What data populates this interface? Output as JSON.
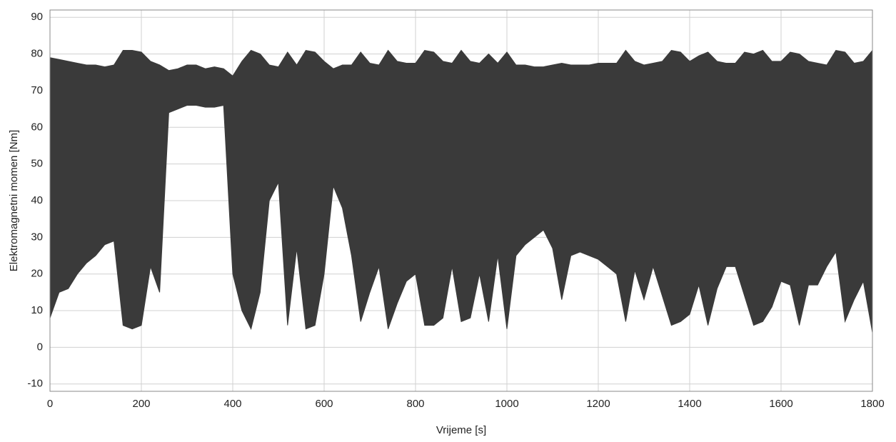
{
  "chart_data": {
    "type": "band",
    "xlabel": "Vrijeme [s]",
    "ylabel": "Elektromagnetni momen [Nm]",
    "color": "#3a3a3a",
    "grid": true,
    "xlim": [
      0,
      1800
    ],
    "xticks": [
      0,
      200,
      400,
      600,
      800,
      1000,
      1200,
      1400,
      1600,
      1800
    ],
    "ylim": [
      -12,
      92
    ],
    "yticks": [
      -10,
      0,
      10,
      20,
      30,
      40,
      50,
      60,
      70,
      80,
      90
    ],
    "x": [
      0,
      20,
      40,
      60,
      80,
      100,
      120,
      140,
      160,
      180,
      200,
      220,
      240,
      260,
      280,
      300,
      320,
      340,
      360,
      380,
      400,
      420,
      440,
      460,
      480,
      500,
      520,
      540,
      560,
      580,
      600,
      620,
      640,
      660,
      680,
      700,
      720,
      740,
      760,
      780,
      800,
      820,
      840,
      860,
      880,
      900,
      920,
      940,
      960,
      980,
      1000,
      1020,
      1040,
      1060,
      1080,
      1100,
      1120,
      1140,
      1160,
      1180,
      1200,
      1220,
      1240,
      1260,
      1280,
      1300,
      1320,
      1340,
      1360,
      1380,
      1400,
      1420,
      1440,
      1460,
      1480,
      1500,
      1520,
      1540,
      1560,
      1580,
      1600,
      1620,
      1640,
      1660,
      1680,
      1700,
      1720,
      1740,
      1760,
      1780,
      1800
    ],
    "high": [
      79,
      78.5,
      78,
      77.5,
      77,
      77,
      76.5,
      77,
      81,
      81,
      80.5,
      78,
      77,
      75.5,
      76,
      77,
      77,
      76,
      76.5,
      76,
      74,
      78,
      81,
      80,
      77,
      76.5,
      80.5,
      77,
      81,
      80.5,
      78,
      76,
      77,
      77,
      80.5,
      77.5,
      77,
      81,
      78,
      77.5,
      77.5,
      81,
      80.5,
      78,
      77.5,
      81,
      78,
      77.5,
      80,
      77.5,
      80.5,
      77,
      77,
      76.5,
      76.5,
      77,
      77.5,
      77,
      77,
      77,
      77.5,
      77.5,
      77.5,
      81,
      78,
      77,
      77.5,
      78,
      81,
      80.5,
      78,
      79.5,
      80.5,
      78,
      77.5,
      77.5,
      80.5,
      80,
      81,
      78,
      78,
      80.5,
      80,
      78,
      77.5,
      77,
      81,
      80.5,
      77.5,
      78,
      81
    ],
    "low": [
      8,
      15,
      16,
      20,
      23,
      25,
      28,
      29,
      6,
      5,
      6,
      22,
      15,
      64,
      65,
      66,
      66,
      65.5,
      65.5,
      66,
      20,
      10,
      5,
      15,
      40,
      45,
      6,
      27,
      5,
      6,
      20,
      44,
      38,
      25,
      7,
      15,
      22,
      5,
      12,
      18,
      20,
      6,
      6,
      8,
      22,
      7,
      8,
      20,
      7,
      25,
      5,
      25,
      28,
      30,
      32,
      27,
      13,
      25,
      26,
      25,
      24,
      22,
      20,
      7,
      21,
      13,
      22,
      14,
      6,
      7,
      9,
      17,
      6,
      16,
      22,
      22,
      14,
      6,
      7,
      11,
      18,
      17,
      6,
      17,
      17,
      22,
      26,
      7,
      13,
      18,
      4
    ]
  }
}
